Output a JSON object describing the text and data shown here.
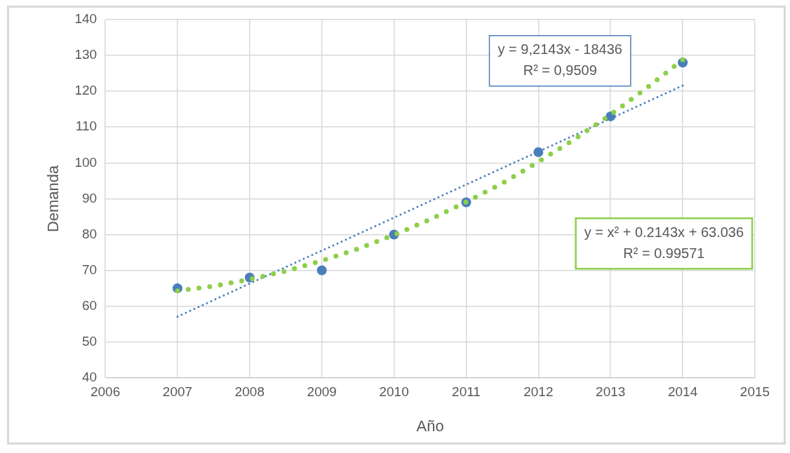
{
  "chart_data": {
    "type": "scatter",
    "xlabel": "Año",
    "ylabel": "Demanda",
    "xlim": [
      2006,
      2015
    ],
    "xticks": [
      2006,
      2007,
      2008,
      2009,
      2010,
      2011,
      2012,
      2013,
      2014,
      2015
    ],
    "ylim": [
      40,
      140
    ],
    "yticks": [
      40,
      50,
      60,
      70,
      80,
      90,
      100,
      110,
      120,
      130,
      140
    ],
    "grid": true,
    "legend": false,
    "marker": "circle",
    "series": [
      {
        "color": "#4a7ebb",
        "x": [
          2007,
          2008,
          2009,
          2010,
          2011,
          2012,
          2013,
          2014
        ],
        "values": [
          65,
          68,
          70,
          80,
          89,
          103,
          113,
          128
        ]
      },
      {
        "type": "line",
        "color": "#4a7ebb",
        "line_style": "dotted",
        "marker": "none",
        "x": [
          2007,
          2014
        ],
        "values": [
          57.1,
          121.6
        ]
      },
      {
        "type": "line",
        "color": "#8dcf4a",
        "line_style": "dotted",
        "marker": "none",
        "x": [
          2007,
          2007.5,
          2008,
          2008.5,
          2009,
          2009.5,
          2010,
          2010.5,
          2011,
          2011.5,
          2012,
          2012.5,
          2013,
          2013.5,
          2014
        ],
        "values": [
          64.3,
          65.6,
          67.5,
          69.8,
          72.7,
          76,
          79.9,
          84.2,
          89.1,
          94.3,
          100.3,
          106.6,
          113.5,
          120.9,
          128.8
        ]
      }
    ],
    "annotations": [
      "y = 9,2143x - 18436\nR² = 0,9509",
      "y = x² + 0.2143x + 63.036\nR² = 0.99571"
    ]
  }
}
